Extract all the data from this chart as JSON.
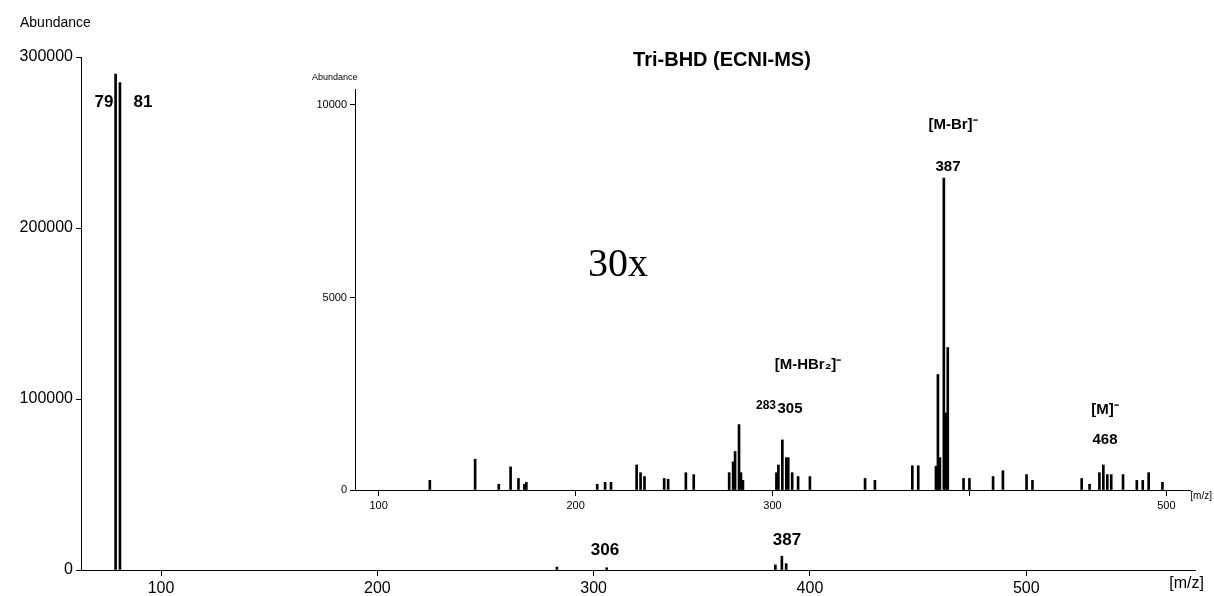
{
  "chart_data": [
    {
      "type": "bar",
      "title": "Tri-BHD (ECNI-MS)",
      "xlabel": "[m/z]",
      "ylabel": "Abundance",
      "xlim": [
        63,
        578
      ],
      "ylim": [
        0,
        300000
      ],
      "xticks": [
        100,
        200,
        300,
        400,
        500
      ],
      "yticks": [
        0,
        100000,
        200000,
        300000
      ],
      "grid": false,
      "legend": false,
      "series": [
        {
          "color": "#000000",
          "x": [
            79,
            81,
            283,
            306,
            384,
            387,
            389
          ],
          "values": [
            290000,
            285000,
            1700,
            1300,
            3000,
            8100,
            3700
          ]
        }
      ],
      "annotations": [
        "79",
        "81",
        "306",
        "387"
      ]
    },
    {
      "type": "bar",
      "xlabel": "[m/z]",
      "ylabel": "Abundance",
      "xlim": [
        88,
        512
      ],
      "ylim": [
        0,
        10400
      ],
      "xticks": [
        100,
        200,
        300,
        {
          "value": 400,
          "label": null
        },
        500
      ],
      "yticks": [
        0,
        5000,
        10000
      ],
      "grid": false,
      "legend": false,
      "series": [
        {
          "color": "#000000",
          "x": [
            126,
            149,
            161,
            167,
            171,
            174,
            175,
            211,
            215,
            218,
            231,
            233,
            235,
            245,
            247,
            256,
            260,
            278,
            280,
            281,
            283,
            284,
            285,
            302,
            303,
            305,
            307,
            308,
            310,
            313,
            319,
            347,
            352,
            371,
            374,
            383,
            384,
            385,
            387,
            388,
            389,
            397,
            400,
            412,
            417,
            429,
            432,
            457,
            461,
            466,
            468,
            470,
            472,
            478,
            485,
            488,
            491,
            498
          ],
          "values": [
            250,
            800,
            150,
            600,
            300,
            150,
            200,
            150,
            200,
            200,
            650,
            450,
            350,
            300,
            280,
            450,
            400,
            450,
            730,
            1000,
            1700,
            450,
            250,
            450,
            650,
            1300,
            840,
            840,
            450,
            350,
            350,
            300,
            250,
            630,
            630,
            620,
            3000,
            840,
            8100,
            2000,
            3700,
            300,
            300,
            350,
            500,
            400,
            250,
            300,
            150,
            450,
            650,
            400,
            400,
            400,
            250,
            250,
            450,
            200
          ]
        }
      ],
      "annotations": [
        "30x",
        "283",
        "[M-HBr₂]⁻",
        "305",
        "[M-Br]⁻",
        "387",
        "[M]⁻",
        "468"
      ]
    }
  ]
}
